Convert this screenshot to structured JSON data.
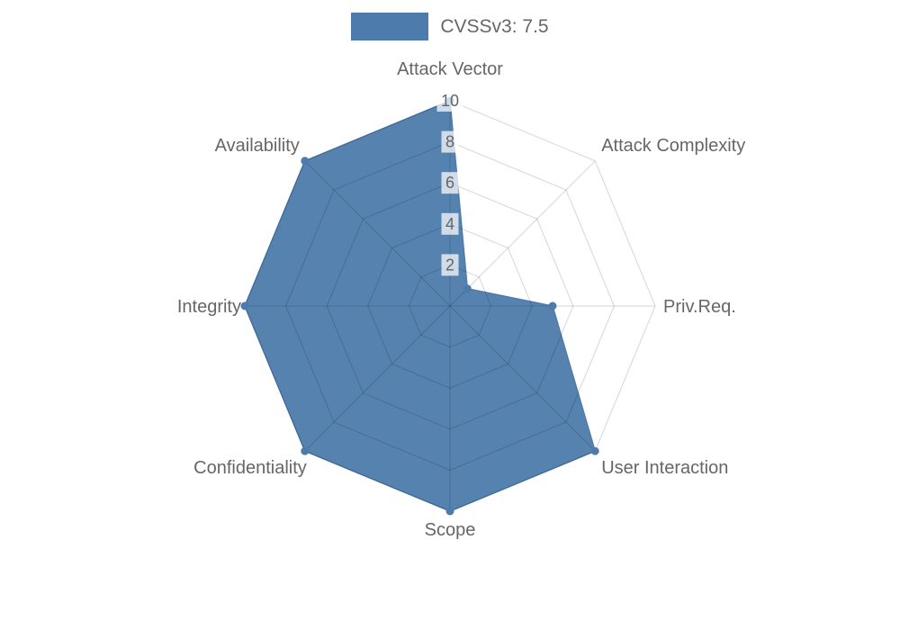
{
  "legend": {
    "label": "CVSSv3: 7.5",
    "color": "#4d7bac"
  },
  "chart_data": {
    "type": "radar",
    "title": "CVSSv3: 7.5",
    "legend_position": "top",
    "categories": [
      "Attack Vector",
      "Attack Complexity",
      "Priv.Req.",
      "User Interaction",
      "Scope",
      "Confidentiality",
      "Integrity",
      "Availability"
    ],
    "series": [
      {
        "name": "CVSSv3: 7.5",
        "values": [
          10,
          1.2,
          5,
          10,
          10,
          10,
          10,
          10
        ]
      }
    ],
    "scale": {
      "min": 0,
      "max": 10,
      "ticks": [
        2,
        4,
        6,
        8,
        10
      ],
      "grid_shape": "polygon",
      "grid": true
    },
    "colors": {
      "series_line": "#4d7bac",
      "series_fill": "rgba(77,123,172,0.95)",
      "grid_line": "rgba(0,0,0,0.16)",
      "label_text": "#666666",
      "tick_backdrop": "rgba(255,255,255,0.72)"
    }
  }
}
